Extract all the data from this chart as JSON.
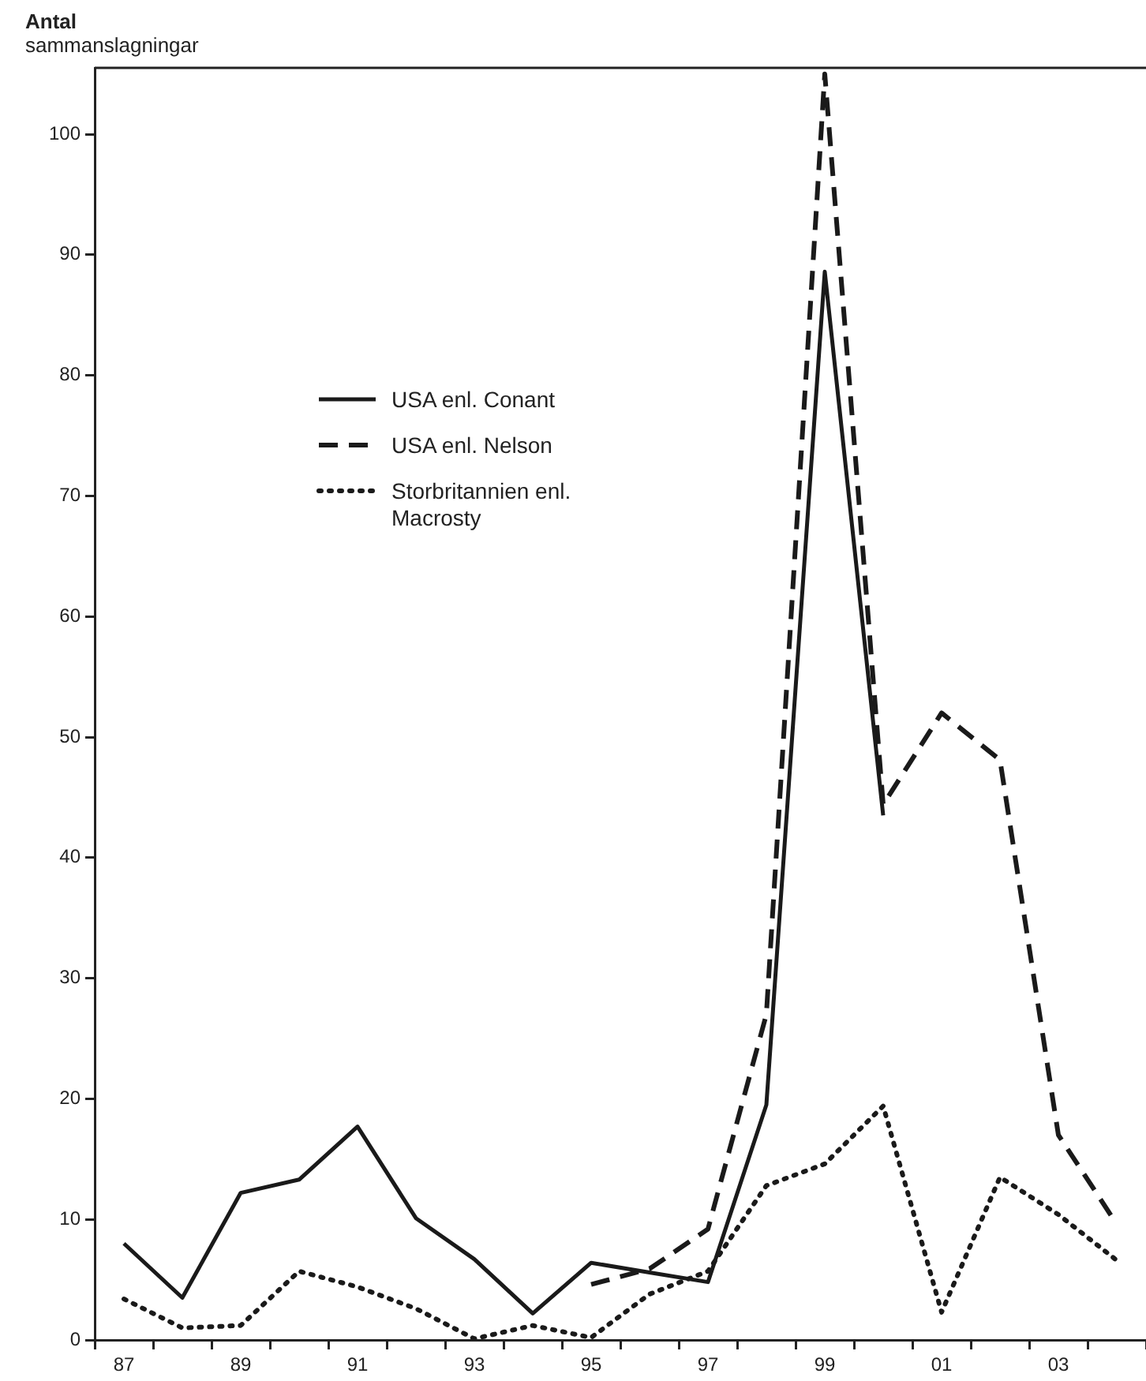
{
  "chart_data": {
    "type": "line",
    "ylabel": "Antal sammanslagningar",
    "legend": "top left",
    "grid": false,
    "marker": "none",
    "categories": [
      "87",
      null,
      "89",
      null,
      "91",
      null,
      "93",
      null,
      "95",
      null,
      "97",
      null,
      "99",
      null,
      "01",
      null,
      "03",
      null
    ],
    "ylim": [
      0,
      105.5
    ],
    "yticks": [
      0,
      10,
      20,
      30,
      40,
      50,
      60,
      70,
      80,
      90,
      100
    ],
    "series": [
      {
        "name": "USA enl. Conant",
        "color": "#1a1a1a",
        "line_style": "solid",
        "values": [
          8.0,
          3.5,
          12.2,
          13.3,
          17.7,
          10.1,
          6.7,
          2.2,
          6.4,
          5.6,
          4.8,
          19.5,
          88.6,
          43.5,
          null,
          null,
          null,
          null
        ]
      },
      {
        "name": "USA enl. Nelson",
        "color": "#1a1a1a",
        "line_style": "dashed",
        "values": [
          null,
          null,
          null,
          null,
          null,
          null,
          null,
          null,
          4.6,
          5.9,
          9.2,
          27,
          105,
          44.4,
          52.0,
          48.1,
          17.0,
          9.6
        ]
      },
      {
        "name": "Storbritannien enl. Macrosty",
        "color": "#1a1a1a",
        "line_style": "dotted",
        "values": [
          3.4,
          1.0,
          1.2,
          5.7,
          4.4,
          2.6,
          0.1,
          1.2,
          0.2,
          3.8,
          5.7,
          12.8,
          14.6,
          19.4,
          2.3,
          13.5,
          10.4,
          6.6
        ]
      }
    ]
  }
}
